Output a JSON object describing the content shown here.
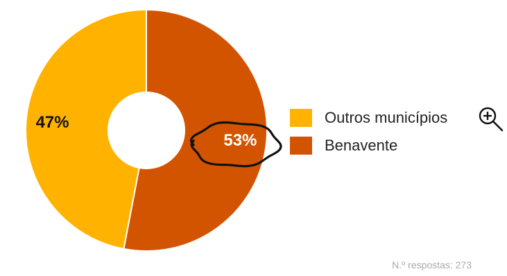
{
  "chart_data": {
    "type": "pie",
    "variant": "donut",
    "title": "",
    "slices": [
      {
        "label": "Benavente",
        "value": 53,
        "display": "53%",
        "color": "#D35400",
        "label_color": "#ffffff"
      },
      {
        "label": "Outros municípios",
        "value": 47,
        "display": "47%",
        "color": "#FFB300",
        "label_color": "#111111"
      }
    ],
    "legend": {
      "placement": "right",
      "entries": [
        {
          "label": "Outros municípios",
          "color": "#FFB300"
        },
        {
          "label": "Benavente",
          "color": "#D35400"
        }
      ]
    },
    "annotations": [
      {
        "type": "hand-drawn-circle",
        "target": "53%",
        "color": "#111111"
      }
    ]
  },
  "footnote": "N.º respostas: 273",
  "icons": {
    "zoom": "zoom-in-icon"
  }
}
